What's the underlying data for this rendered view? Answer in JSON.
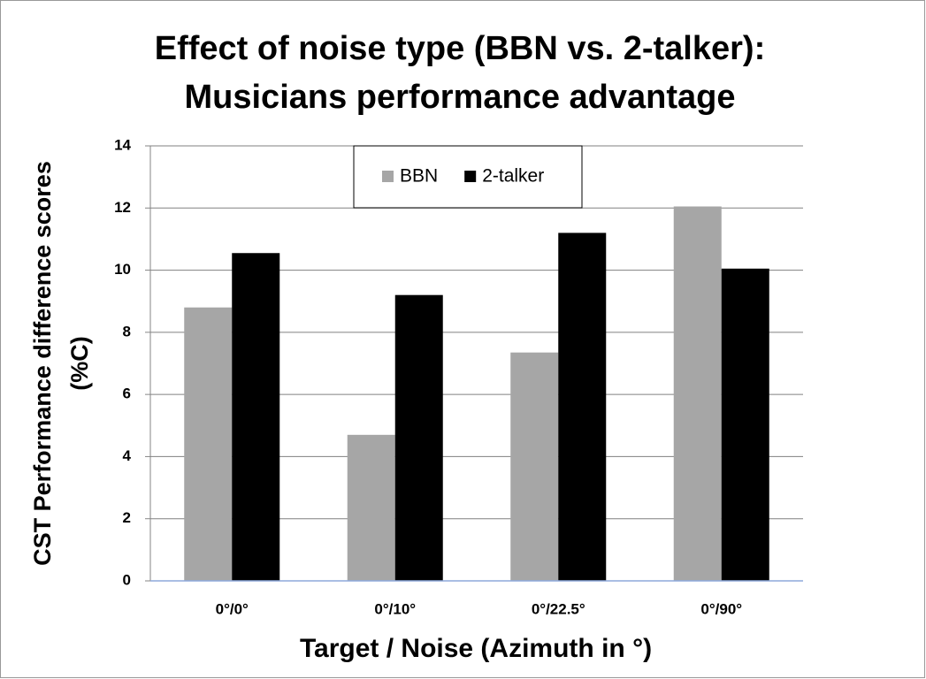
{
  "chart_data": {
    "type": "bar",
    "title": [
      "Effect of noise type (BBN vs. 2-talker):",
      "Musicians performance advantage"
    ],
    "xlabel": "Target / Noise (Azimuth in °)",
    "ylabel": [
      "CST Performance difference scores",
      "(%C)"
    ],
    "categories": [
      "0°/0°",
      "0°/10°",
      "0°/22.5°",
      "0°/90°"
    ],
    "series": [
      {
        "name": "BBN",
        "color": "#a6a6a6",
        "values": [
          8.8,
          4.7,
          7.35,
          12.05
        ]
      },
      {
        "name": "2-talker",
        "color": "#000000",
        "values": [
          10.55,
          9.2,
          11.2,
          10.05
        ]
      }
    ],
    "ylim": [
      0,
      14
    ],
    "yticks": [
      0,
      2,
      4,
      6,
      8,
      10,
      12,
      14
    ],
    "grid": true,
    "legend": "top"
  }
}
